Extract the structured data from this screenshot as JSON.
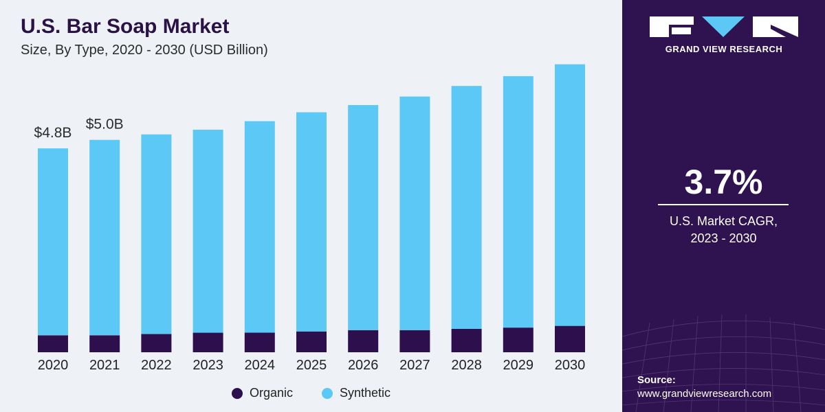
{
  "header": {
    "title": "U.S. Bar Soap Market",
    "subtitle": "Size, By Type, 2020 - 2030 (USD Billion)"
  },
  "chart_data": {
    "type": "bar",
    "stacked": true,
    "title": "U.S. Bar Soap Market",
    "subtitle": "Size, By Type, 2020 - 2030 (USD Billion)",
    "categories": [
      "2020",
      "2021",
      "2022",
      "2023",
      "2024",
      "2025",
      "2026",
      "2027",
      "2028",
      "2029",
      "2030"
    ],
    "series": [
      {
        "name": "Organic",
        "color": "#2e0f4d",
        "values": [
          0.4,
          0.4,
          0.43,
          0.46,
          0.46,
          0.49,
          0.52,
          0.52,
          0.55,
          0.58,
          0.62
        ]
      },
      {
        "name": "Synthetic",
        "color": "#5bc8f5",
        "values": [
          4.4,
          4.6,
          4.7,
          4.78,
          4.98,
          5.16,
          5.3,
          5.5,
          5.72,
          5.92,
          6.16
        ]
      }
    ],
    "data_labels": [
      {
        "category": "2020",
        "text": "$4.8B"
      },
      {
        "category": "2021",
        "text": "$5.0B"
      }
    ],
    "ylim": [
      0,
      7.0
    ],
    "xlabel": "",
    "ylabel": "",
    "grid": false,
    "legend": "bottom"
  },
  "legend": {
    "items": [
      {
        "label": "Organic",
        "color": "#2e0f4d"
      },
      {
        "label": "Synthetic",
        "color": "#5bc8f5"
      }
    ]
  },
  "brand": {
    "name": "GRAND VIEW RESEARCH",
    "logo_icon": "gvr-logo-icon"
  },
  "cagr": {
    "value": "3.7%",
    "line1": "U.S. Market CAGR,",
    "line2": "2023 - 2030"
  },
  "source": {
    "label": "Source:",
    "url": "www.grandviewresearch.com"
  }
}
